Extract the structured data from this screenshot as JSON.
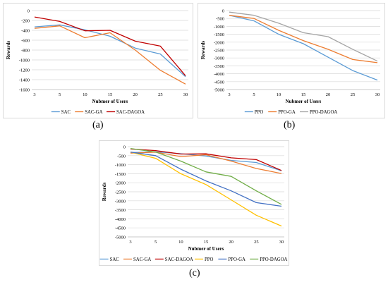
{
  "chart_data": [
    {
      "id": "a",
      "type": "line",
      "categories": [
        "3",
        "5",
        "10",
        "15",
        "20",
        "25",
        "30"
      ],
      "series": [
        {
          "name": "SAC",
          "color": "#5b9bd5",
          "values": [
            -330,
            -290,
            -390,
            -520,
            -760,
            -880,
            -1340
          ]
        },
        {
          "name": "SAC-GA",
          "color": "#ed7d31",
          "values": [
            -360,
            -310,
            -550,
            -450,
            -800,
            -1210,
            -1490
          ]
        },
        {
          "name": "SAC-DAGOA",
          "color": "#c00000",
          "values": [
            -130,
            -220,
            -410,
            -400,
            -620,
            -720,
            -1320
          ]
        }
      ],
      "xlabel": "Nubmer of Users",
      "ylabel": "Rewards",
      "ylim": [
        -1600,
        0
      ],
      "yticks": [
        0,
        -200,
        -400,
        -600,
        -800,
        -1000,
        -1200,
        -1400,
        -1600
      ],
      "ytick_labels": [
        "0",
        "-200",
        "-400",
        "-600",
        "-800",
        "-1000",
        "-1200",
        "-1400",
        "-1600"
      ],
      "grid": "horizontal",
      "legend": "bottom"
    },
    {
      "id": "b",
      "type": "line",
      "categories": [
        "3",
        "5",
        "10",
        "15",
        "20",
        "25",
        "30"
      ],
      "series": [
        {
          "name": "PPO",
          "color": "#5b9bd5",
          "values": [
            -300,
            -650,
            -1500,
            -2100,
            -2950,
            -3800,
            -4400
          ]
        },
        {
          "name": "PPO-GA",
          "color": "#ed7d31",
          "values": [
            -300,
            -500,
            -1250,
            -1900,
            -2450,
            -3100,
            -3300
          ]
        },
        {
          "name": "PPO-DAGOA",
          "color": "#a5a5a5",
          "values": [
            -100,
            -300,
            -800,
            -1400,
            -1650,
            -2450,
            -3200
          ]
        }
      ],
      "xlabel": "Nubmer of Users",
      "ylabel": "Rewards",
      "ylim": [
        -5000,
        0
      ],
      "yticks": [
        0,
        -500,
        -1000,
        -1500,
        -2000,
        -2500,
        -3000,
        -3500,
        -4000,
        -4500,
        -5000
      ],
      "ytick_labels": [
        "0",
        "-500",
        "-1000",
        "-1500",
        "-2000",
        "-2500",
        "-3000",
        "-3500",
        "-4000",
        "-4500",
        "-5000"
      ],
      "grid": "horizontal",
      "legend": "bottom"
    },
    {
      "id": "c",
      "type": "line",
      "categories": [
        "3",
        "5",
        "10",
        "15",
        "20",
        "25",
        "30"
      ],
      "series": [
        {
          "name": "SAC",
          "color": "#5b9bd5",
          "values": [
            -330,
            -290,
            -390,
            -520,
            -760,
            -880,
            -1340
          ]
        },
        {
          "name": "SAC-GA",
          "color": "#ed7d31",
          "values": [
            -360,
            -310,
            -550,
            -450,
            -800,
            -1210,
            -1490
          ]
        },
        {
          "name": "SAC-DAGOA",
          "color": "#c00000",
          "values": [
            -130,
            -220,
            -410,
            -400,
            -620,
            -720,
            -1320
          ]
        },
        {
          "name": "PPO",
          "color": "#ffc000",
          "values": [
            -300,
            -650,
            -1500,
            -2100,
            -2950,
            -3800,
            -4400
          ]
        },
        {
          "name": "PPO-GA",
          "color": "#4472c4",
          "values": [
            -300,
            -500,
            -1250,
            -1900,
            -2450,
            -3100,
            -3300
          ]
        },
        {
          "name": "PPO-DAGOA",
          "color": "#70ad47",
          "values": [
            -100,
            -300,
            -800,
            -1400,
            -1650,
            -2450,
            -3200
          ]
        }
      ],
      "xlabel": "Nubmer of Users",
      "ylabel": "Rewards",
      "ylim": [
        -5000,
        0
      ],
      "yticks": [
        0,
        -500,
        -1000,
        -1500,
        -2000,
        -2500,
        -3000,
        -3500,
        -4000,
        -4500,
        -5000
      ],
      "ytick_labels": [
        "0",
        "-500",
        "-1000",
        "-1500",
        "-2000",
        "-2500",
        "-3000",
        "-3500",
        "-4000",
        "-4500",
        "-5000"
      ],
      "grid": "horizontal",
      "legend": "bottom"
    }
  ],
  "captions": {
    "a": "(a)",
    "b": "(b)",
    "c": "(c)"
  },
  "colors": {
    "grid": "#d9d9d9",
    "axis": "#bfbfbf",
    "text": "#595959"
  }
}
